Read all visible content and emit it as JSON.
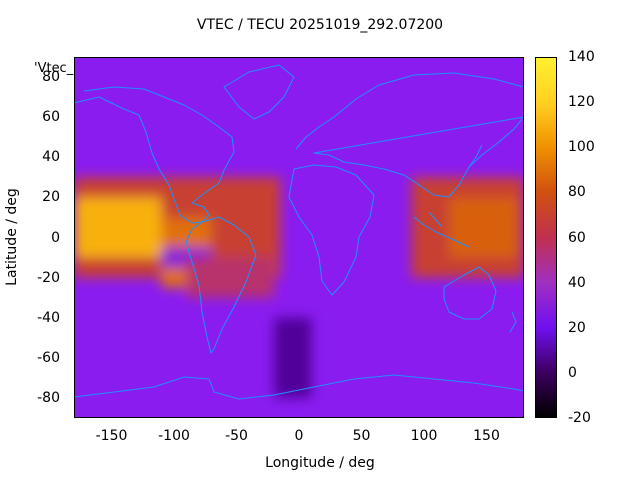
{
  "title": "VTEC / TECU 20251019_292.07200",
  "map_label": "'Vtec_",
  "colors": {
    "background": "#8a1cf0",
    "coastline": "#1e90ff",
    "colorbar_stops": [
      "#000000",
      "#3c0060",
      "#7010f0",
      "#a030c0",
      "#c03050",
      "#d05010",
      "#f09000",
      "#ffd020",
      "#fff030"
    ]
  },
  "chart_data": {
    "type": "heatmap",
    "xlabel": "Longitude / deg",
    "ylabel": "Latitude / deg",
    "xlim": [
      -180,
      180
    ],
    "ylim": [
      -90,
      90
    ],
    "x_ticks": [
      -150,
      -100,
      -50,
      0,
      50,
      100,
      150
    ],
    "y_ticks": [
      -80,
      -60,
      -40,
      -20,
      0,
      20,
      40,
      60,
      80
    ],
    "colorbar": {
      "range": [
        -20,
        140
      ],
      "ticks": [
        -20,
        0,
        20,
        40,
        60,
        80,
        100,
        120,
        140
      ]
    },
    "regions": [
      {
        "lon": [
          -180,
          -15
        ],
        "lat": [
          -20,
          30
        ],
        "value": 70
      },
      {
        "lon": [
          -180,
          -110
        ],
        "lat": [
          -10,
          20
        ],
        "value": 110
      },
      {
        "lon": [
          -110,
          -70
        ],
        "lat": [
          -25,
          10
        ],
        "value": 90
      },
      {
        "lon": [
          -110,
          -70
        ],
        "lat": [
          -15,
          -5
        ],
        "value": 30
      },
      {
        "lon": [
          90,
          180
        ],
        "lat": [
          -20,
          30
        ],
        "value": 70
      },
      {
        "lon": [
          120,
          175
        ],
        "lat": [
          -10,
          20
        ],
        "value": 85
      },
      {
        "lon": [
          -90,
          -20
        ],
        "lat": [
          -30,
          -10
        ],
        "value": 55
      },
      {
        "lon": [
          -20,
          10
        ],
        "lat": [
          -80,
          -40
        ],
        "value": 8
      }
    ]
  }
}
